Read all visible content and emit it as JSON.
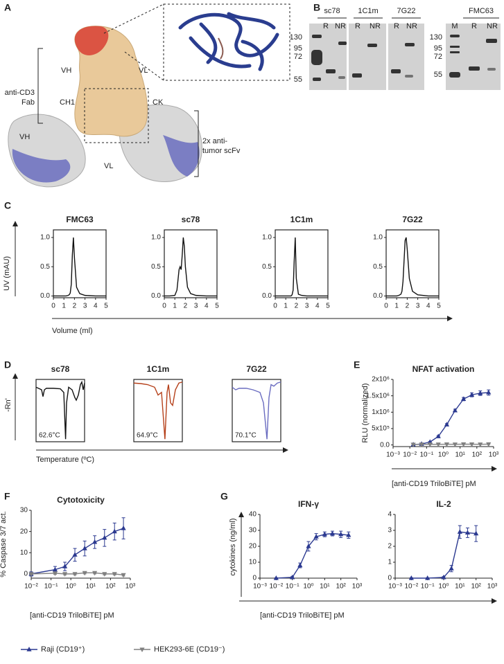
{
  "figure": {
    "panels": [
      "A",
      "B",
      "C",
      "D",
      "E",
      "F",
      "G"
    ],
    "panel_a": {
      "labels": [
        "VH",
        "VL",
        "anti-CD3",
        "Fab",
        "CH1",
        "CK",
        "VH",
        "VL",
        "2x anti-",
        "tumor scFv"
      ]
    },
    "panel_b": {
      "markers_left": [
        130,
        95,
        72,
        55
      ],
      "groups": [
        "sc78",
        "1C1m",
        "7G22"
      ],
      "lanes": [
        "R",
        "NR"
      ],
      "group_right": "FMC63",
      "lanes_right": [
        "M",
        "R",
        "NR"
      ],
      "markers_right": [
        130,
        95,
        72,
        55
      ]
    },
    "panel_c": {
      "y_label": "UV (mAU)",
      "x_label": "Volume (ml)"
    },
    "panel_d": {
      "y_label": "-Rn'",
      "x_label": "Temperature (ºC)"
    },
    "panel_g": {
      "y_label": "cytokines (ng/ml)",
      "x_label": "[anti-CD19 TriloBiTE] pM"
    }
  },
  "chart_data": [
    {
      "type": "line",
      "title": "FMC63",
      "box": true,
      "color": "#111111",
      "x": [
        0,
        0.5,
        1,
        1.2,
        1.4,
        1.5,
        1.6,
        1.7,
        1.8,
        1.9,
        2,
        2.2,
        2.5,
        3,
        4,
        5
      ],
      "series": [
        {
          "values": [
            0,
            0,
            0,
            0,
            0.01,
            0.02,
            0.05,
            0.2,
            0.7,
            1.0,
            0.65,
            0.15,
            0.04,
            0.01,
            0,
            0
          ]
        }
      ],
      "xlim": [
        0,
        5
      ],
      "ylim": [
        -0.03,
        1.13
      ],
      "xticks": [
        0,
        1,
        2,
        3,
        4,
        5
      ],
      "yticks": [
        {
          "value": 0,
          "label": "0.0"
        },
        {
          "value": 0.5,
          "label": "0.5"
        },
        {
          "value": 1,
          "label": "1.0"
        }
      ]
    },
    {
      "type": "line",
      "title": "sc78",
      "box": true,
      "color": "#111111",
      "x": [
        0,
        0.5,
        1,
        1.2,
        1.4,
        1.5,
        1.6,
        1.7,
        1.8,
        1.9,
        2,
        2.2,
        2.5,
        3,
        4,
        5
      ],
      "series": [
        {
          "values": [
            0,
            0,
            0.01,
            0.1,
            0.45,
            0.5,
            0.45,
            0.7,
            1.0,
            0.85,
            0.5,
            0.15,
            0.04,
            0.01,
            0,
            0
          ]
        }
      ],
      "xlim": [
        0,
        5
      ],
      "ylim": [
        -0.03,
        1.13
      ],
      "xticks": [
        0,
        1,
        2,
        3,
        4,
        5
      ],
      "yticks": [
        {
          "value": 0,
          "label": "0.0"
        },
        {
          "value": 0.5,
          "label": "0.5"
        },
        {
          "value": 1,
          "label": "1.0"
        }
      ]
    },
    {
      "type": "line",
      "title": "1C1m",
      "box": true,
      "color": "#111111",
      "x": [
        0,
        0.5,
        1,
        1.2,
        1.4,
        1.5,
        1.6,
        1.7,
        1.8,
        1.9,
        2,
        2.2,
        2.5,
        3,
        4,
        5
      ],
      "series": [
        {
          "values": [
            0,
            0,
            0,
            0,
            0,
            0,
            0.02,
            0.1,
            0.6,
            1.0,
            0.3,
            0.03,
            0.01,
            0,
            0,
            0
          ]
        }
      ],
      "xlim": [
        0,
        5
      ],
      "ylim": [
        -0.03,
        1.13
      ],
      "xticks": [
        0,
        1,
        2,
        3,
        4,
        5
      ],
      "yticks": [
        {
          "value": 0,
          "label": "0.0"
        },
        {
          "value": 0.5,
          "label": "0.5"
        },
        {
          "value": 1,
          "label": "1.0"
        }
      ]
    },
    {
      "type": "line",
      "title": "7G22",
      "box": true,
      "color": "#111111",
      "x": [
        0,
        0.5,
        1,
        1.2,
        1.4,
        1.5,
        1.6,
        1.7,
        1.8,
        1.9,
        2,
        2.2,
        2.5,
        3,
        4,
        5
      ],
      "series": [
        {
          "values": [
            0,
            0,
            0,
            0.01,
            0.03,
            0.08,
            0.25,
            0.6,
            0.95,
            1.0,
            0.8,
            0.3,
            0.08,
            0.02,
            0,
            0
          ]
        }
      ],
      "xlim": [
        0,
        5
      ],
      "ylim": [
        -0.03,
        1.13
      ],
      "xticks": [
        0,
        1,
        2,
        3,
        4,
        5
      ],
      "yticks": [
        {
          "value": 0,
          "label": "0.0"
        },
        {
          "value": 0.5,
          "label": "0.5"
        },
        {
          "value": 1,
          "label": "1.0"
        }
      ]
    },
    {
      "type": "line",
      "title": "sc78",
      "box": true,
      "annotation": "62.6°C",
      "x": [
        20,
        25,
        28,
        30,
        32,
        35,
        45,
        55,
        60,
        62.6,
        64,
        67,
        72,
        76,
        78,
        81,
        84,
        86,
        88,
        90
      ],
      "series": [
        {
          "color": "#111111",
          "values": [
            0,
            -0.03,
            -0.05,
            -0.18,
            -0.05,
            -0.02,
            -0.02,
            -0.03,
            -0.1,
            -1.0,
            -0.3,
            0,
            -0.05,
            -0.2,
            -0.25,
            -0.15,
            0.05,
            0.1,
            -0.05,
            0.08
          ]
        }
      ],
      "xlim": [
        20,
        90
      ],
      "ylim": [
        -1.05,
        0.15
      ]
    },
    {
      "type": "line",
      "title": "1C1m",
      "box": true,
      "annotation": "64.9°C",
      "x": [
        20,
        30,
        40,
        50,
        55,
        60,
        64.9,
        68,
        70,
        73,
        76,
        80,
        85,
        90
      ],
      "series": [
        {
          "color": "#b5401a",
          "values": [
            0.08,
            0.07,
            0.05,
            0,
            -0.15,
            -0.1,
            -1.0,
            -0.1,
            0.05,
            -0.3,
            -0.35,
            -0.05,
            0.08,
            0.1
          ]
        }
      ],
      "xlim": [
        20,
        90
      ],
      "ylim": [
        -1.05,
        0.15
      ]
    },
    {
      "type": "line",
      "title": "7G22",
      "box": true,
      "annotation": "70.1°C",
      "x": [
        20,
        25,
        30,
        40,
        50,
        60,
        65,
        70.1,
        73,
        76,
        80,
        85,
        90
      ],
      "series": [
        {
          "color": "#6a6cc0",
          "values": [
            0,
            -0.05,
            -0.02,
            -0.02,
            -0.05,
            -0.1,
            -0.3,
            -1.0,
            -0.2,
            0.05,
            0.02,
            0.08,
            0.1
          ]
        }
      ],
      "xlim": [
        20,
        90
      ],
      "ylim": [
        -1.05,
        0.15
      ]
    },
    {
      "type": "line",
      "title": "NFAT activation",
      "y_label": "RLU (normalized)",
      "x_label": "[anti-CD19 TriloBiTE] pM",
      "log_x": true,
      "x": [
        0.016,
        0.05,
        0.16,
        0.5,
        1.6,
        5,
        16,
        50,
        160,
        500
      ],
      "series": [
        {
          "name": "Raji (CD19⁺)",
          "color": "#2b3990",
          "marker": "triangle-up",
          "values": [
            10000,
            30000,
            90000,
            260000,
            620000,
            1050000,
            1400000,
            1530000,
            1580000,
            1600000
          ],
          "errors": [
            10000,
            10000,
            15000,
            20000,
            30000,
            40000,
            50000,
            60000,
            70000,
            80000
          ]
        },
        {
          "name": "HEK293-6E (CD19⁻)",
          "color": "#808080",
          "marker": "triangle-down",
          "values": [
            15000,
            18000,
            20000,
            20000,
            22000,
            20000,
            25000,
            22000,
            20000,
            25000
          ],
          "errors": [
            5000,
            5000,
            5000,
            5000,
            5000,
            5000,
            5000,
            5000,
            5000,
            5000
          ]
        }
      ],
      "xlim": [
        0.001,
        1000
      ],
      "ylim": [
        -50000,
        2000000
      ],
      "xticks": [
        {
          "value": 0.001,
          "label": "10⁻³"
        },
        {
          "value": 0.01,
          "label": "10⁻²"
        },
        {
          "value": 0.1,
          "label": "10⁻¹"
        },
        {
          "value": 1,
          "label": "10⁰"
        },
        {
          "value": 10,
          "label": "10¹"
        },
        {
          "value": 100,
          "label": "10²"
        },
        {
          "value": 1000,
          "label": "10³"
        }
      ],
      "yticks": [
        {
          "value": 0,
          "label": "0.0"
        },
        {
          "value": 500000,
          "label": "5x10⁵"
        },
        {
          "value": 1000000,
          "label": "1x10⁶"
        },
        {
          "value": 1500000,
          "label": "1.5x10⁶"
        },
        {
          "value": 2000000,
          "label": "2x10⁶"
        }
      ]
    },
    {
      "type": "line",
      "title": "Cytotoxicity",
      "y_label": "% Caspase 3/7 act.",
      "x_label": "[anti-CD19 TriloBiTE] pM",
      "log_x": true,
      "x": [
        0.01,
        0.16,
        0.5,
        1.6,
        5,
        16,
        50,
        160,
        450
      ],
      "series": [
        {
          "name": "Raji (CD19⁺)",
          "color": "#2b3990",
          "marker": "triangle-up",
          "values": [
            0,
            2,
            3.5,
            9,
            12,
            15,
            17,
            20,
            21.5
          ],
          "errors": [
            1,
            1.5,
            2,
            3,
            3.5,
            3,
            4,
            4,
            5
          ]
        },
        {
          "name": "HEK293-6E (CD19⁻)",
          "color": "#808080",
          "marker": "triangle-down",
          "values": [
            0,
            0.3,
            0,
            0,
            0.5,
            0.5,
            0,
            0,
            -0.5
          ],
          "errors": [
            0.5,
            0.5,
            0.5,
            0.5,
            0.5,
            0.5,
            0.5,
            0.5,
            0.5
          ]
        }
      ],
      "xlim": [
        0.01,
        1000
      ],
      "ylim": [
        -2,
        30
      ],
      "xticks": [
        {
          "value": 0.01,
          "label": "10⁻²"
        },
        {
          "value": 0.1,
          "label": "10⁻¹"
        },
        {
          "value": 1,
          "label": "10⁰"
        },
        {
          "value": 10,
          "label": "10¹"
        },
        {
          "value": 100,
          "label": "10²"
        },
        {
          "value": 1000,
          "label": "10³"
        }
      ],
      "yticks": [
        0,
        10,
        20,
        30
      ]
    },
    {
      "type": "line",
      "title": "IFN-γ",
      "log_x": true,
      "x": [
        0.01,
        0.1,
        0.3,
        1,
        3,
        10,
        30,
        100,
        300
      ],
      "series": [
        {
          "name": "Raji (CD19⁺)",
          "color": "#2b3990",
          "marker": "triangle-up",
          "values": [
            0,
            0.5,
            8,
            20,
            26,
            27.5,
            28,
            27.5,
            27
          ],
          "errors": [
            0.2,
            0.5,
            1.5,
            3,
            2,
            1.5,
            1.5,
            2,
            2
          ]
        }
      ],
      "xlim": [
        0.001,
        1000
      ],
      "ylim": [
        0,
        40
      ],
      "xticks": [
        {
          "value": 0.001,
          "label": "10⁻³"
        },
        {
          "value": 0.01,
          "label": "10⁻²"
        },
        {
          "value": 0.1,
          "label": "10⁻¹"
        },
        {
          "value": 1,
          "label": "10⁰"
        },
        {
          "value": 10,
          "label": "10¹"
        },
        {
          "value": 100,
          "label": "10²"
        },
        {
          "value": 1000,
          "label": "10³"
        }
      ],
      "yticks": [
        0,
        10,
        20,
        30,
        40
      ]
    },
    {
      "type": "line",
      "title": "IL-2",
      "log_x": true,
      "x": [
        0.01,
        0.1,
        1,
        3,
        10,
        30,
        100
      ],
      "series": [
        {
          "name": "Raji (CD19⁺)",
          "color": "#2b3990",
          "marker": "triangle-up",
          "values": [
            0,
            0,
            0.05,
            0.6,
            2.9,
            2.85,
            2.8
          ],
          "errors": [
            0.02,
            0.02,
            0.05,
            0.2,
            0.4,
            0.3,
            0.5
          ]
        }
      ],
      "xlim": [
        0.001,
        1000
      ],
      "ylim": [
        0,
        4
      ],
      "xticks": [
        {
          "value": 0.001,
          "label": "10⁻³"
        },
        {
          "value": 0.01,
          "label": "10⁻²"
        },
        {
          "value": 0.1,
          "label": "10⁻¹"
        },
        {
          "value": 1,
          "label": "10⁰"
        },
        {
          "value": 10,
          "label": "10¹"
        },
        {
          "value": 100,
          "label": "10²"
        },
        {
          "value": 1000,
          "label": "10³"
        }
      ],
      "yticks": [
        0,
        1,
        2,
        3,
        4
      ]
    }
  ]
}
